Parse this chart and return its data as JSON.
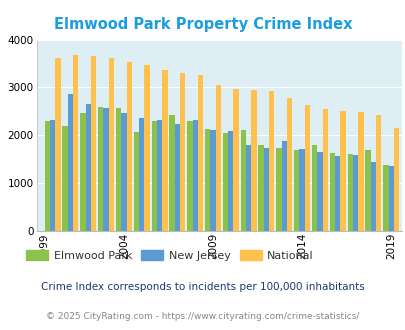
{
  "title": "Elmwood Park Property Crime Index",
  "years": [
    2000,
    2001,
    2002,
    2003,
    2004,
    2005,
    2006,
    2007,
    2008,
    2009,
    2010,
    2011,
    2012,
    2013,
    2014,
    2015,
    2016,
    2017,
    2018,
    2019
  ],
  "elmwood_park": [
    2300,
    2200,
    2470,
    2600,
    2580,
    2070,
    2300,
    2420,
    2300,
    2130,
    2050,
    2110,
    1800,
    1740,
    1700,
    1790,
    1620,
    1600,
    1700,
    1380
  ],
  "new_jersey": [
    2310,
    2860,
    2650,
    2570,
    2460,
    2370,
    2320,
    2230,
    2310,
    2110,
    2080,
    1800,
    1740,
    1890,
    1720,
    1660,
    1570,
    1580,
    1440,
    1350
  ],
  "national": [
    3620,
    3680,
    3660,
    3620,
    3530,
    3460,
    3370,
    3310,
    3270,
    3060,
    2960,
    2950,
    2920,
    2770,
    2640,
    2560,
    2510,
    2490,
    2430,
    2160
  ],
  "bar_colors": {
    "elmwood_park": "#8bc34a",
    "new_jersey": "#5b9bd5",
    "national": "#ffc04c"
  },
  "background_color": "#ddeef5",
  "ylim": [
    0,
    4000
  ],
  "yticks": [
    0,
    1000,
    2000,
    3000,
    4000
  ],
  "xtick_years": [
    1999,
    2004,
    2009,
    2014,
    2019
  ],
  "legend_labels": [
    "Elmwood Park",
    "New Jersey",
    "National"
  ],
  "footnote1": "Crime Index corresponds to incidents per 100,000 inhabitants",
  "footnote2": "© 2025 CityRating.com - https://www.cityrating.com/crime-statistics/",
  "title_color": "#1b9de2",
  "footnote1_color": "#1a3a6e",
  "footnote2_color": "#888888",
  "figsize": [
    4.06,
    3.3
  ],
  "dpi": 100
}
